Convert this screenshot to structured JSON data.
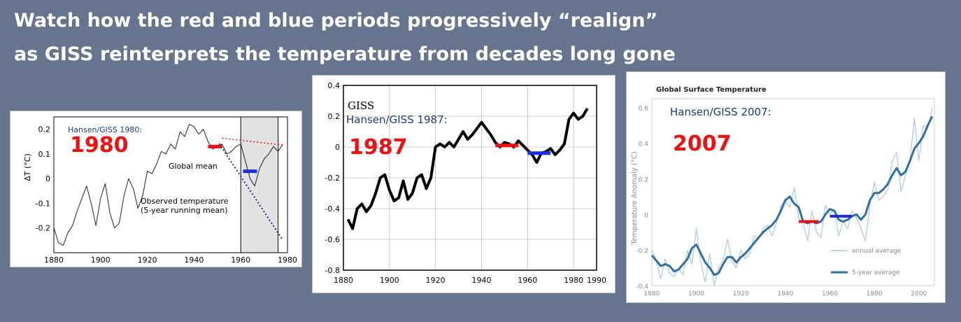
{
  "headline": {
    "line1": "Watch how the red and blue periods progressively “realign”",
    "line2": "as GISS reinterprets the temperature from decades long gone"
  },
  "colors": {
    "background": "#67748f",
    "red_marker": "#ee1111",
    "blue_marker": "#1a2fe0",
    "gistemp_2007_line": "#2e6fa6",
    "gistemp_2007_annual": "#a8c8dc"
  },
  "chart_data": [
    {
      "type": "line",
      "title": "",
      "source_label": "Hansen/GISS 1980:",
      "year_label": "1980",
      "ylabel": "ΔT (°C)",
      "xlabel": "",
      "xlim": [
        1880,
        1980
      ],
      "ylim": [
        -0.3,
        0.25
      ],
      "xticks": [
        1880,
        1900,
        1920,
        1940,
        1960,
        1980
      ],
      "yticks": [
        {
          "v": 0.2,
          "t": "0.2"
        },
        {
          "v": 0.1,
          "t": "0.1"
        },
        {
          "v": 0,
          "t": "0"
        },
        {
          "v": -0.1,
          "t": "-0.1"
        },
        {
          "v": -0.2,
          "t": "-0.2"
        }
      ],
      "annotations": [
        "Global mean",
        "Observed temperature",
        "(5-year running mean)"
      ],
      "x": [
        1880,
        1882,
        1884,
        1886,
        1888,
        1890,
        1892,
        1894,
        1896,
        1898,
        1900,
        1902,
        1904,
        1906,
        1908,
        1910,
        1912,
        1914,
        1916,
        1918,
        1920,
        1922,
        1924,
        1926,
        1928,
        1930,
        1932,
        1934,
        1936,
        1938,
        1940,
        1942,
        1944,
        1946,
        1948,
        1950,
        1952,
        1954,
        1956,
        1958,
        1960,
        1962,
        1964,
        1966,
        1968,
        1970,
        1972,
        1974,
        1976,
        1978
      ],
      "y": [
        -0.2,
        -0.26,
        -0.27,
        -0.22,
        -0.19,
        -0.13,
        -0.08,
        -0.03,
        -0.1,
        -0.19,
        -0.08,
        -0.02,
        -0.14,
        -0.2,
        -0.18,
        -0.07,
        0.0,
        -0.04,
        -0.12,
        -0.07,
        0.03,
        0.02,
        0.06,
        0.11,
        0.1,
        0.14,
        0.12,
        0.19,
        0.17,
        0.22,
        0.21,
        0.18,
        0.2,
        0.15,
        0.12,
        0.13,
        0.14,
        0.1,
        0.11,
        0.13,
        0.14,
        0.07,
        0.0,
        -0.03,
        0.04,
        0.08,
        0.1,
        0.13,
        0.11,
        0.14
      ],
      "red_marker": {
        "x": [
          1946,
          1952
        ],
        "y": 0.13
      },
      "blue_marker": {
        "x": [
          1961,
          1967
        ],
        "y": 0.03
      }
    },
    {
      "type": "line",
      "title": "",
      "source_label": "GISS",
      "source_sublabel": "Hansen/GISS 1987:",
      "year_label": "1987",
      "xlabel": "",
      "ylabel": "",
      "xlim": [
        1880,
        1990
      ],
      "ylim": [
        -0.8,
        0.4
      ],
      "xticks": [
        1880,
        1900,
        1920,
        1940,
        1960,
        1980,
        1990
      ],
      "yticks": [
        {
          "v": 0.4,
          "t": "0.4"
        },
        {
          "v": 0.2,
          "t": "0.2"
        },
        {
          "v": 0,
          "t": "0"
        },
        {
          "v": -0.2,
          "t": "-0.2"
        },
        {
          "v": -0.4,
          "t": "-0.4"
        },
        {
          "v": -0.6,
          "t": "-0.6"
        },
        {
          "v": -0.8,
          "t": "-0.8"
        }
      ],
      "x": [
        1882,
        1884,
        1886,
        1888,
        1890,
        1892,
        1894,
        1896,
        1898,
        1900,
        1902,
        1904,
        1906,
        1908,
        1910,
        1912,
        1914,
        1916,
        1918,
        1920,
        1922,
        1924,
        1926,
        1928,
        1930,
        1932,
        1934,
        1936,
        1938,
        1940,
        1942,
        1944,
        1946,
        1948,
        1950,
        1952,
        1954,
        1956,
        1958,
        1960,
        1962,
        1964,
        1966,
        1968,
        1970,
        1972,
        1974,
        1976,
        1978,
        1980,
        1982,
        1984,
        1986
      ],
      "y": [
        -0.47,
        -0.53,
        -0.4,
        -0.37,
        -0.42,
        -0.38,
        -0.3,
        -0.2,
        -0.18,
        -0.28,
        -0.35,
        -0.33,
        -0.22,
        -0.34,
        -0.3,
        -0.2,
        -0.18,
        -0.27,
        -0.2,
        0.0,
        0.02,
        0.0,
        0.03,
        0.0,
        0.05,
        0.1,
        0.05,
        0.08,
        0.12,
        0.16,
        0.12,
        0.08,
        0.03,
        0.0,
        0.03,
        0.02,
        0.0,
        0.04,
        0.01,
        -0.02,
        -0.05,
        -0.1,
        -0.04,
        -0.03,
        -0.01,
        -0.05,
        -0.02,
        0.02,
        0.18,
        0.22,
        0.18,
        0.2,
        0.25
      ],
      "red_marker": {
        "x": [
          1946,
          1956
        ],
        "y": 0.01
      },
      "blue_marker": {
        "x": [
          1960,
          1970
        ],
        "y": -0.04
      }
    },
    {
      "type": "line",
      "title": "Global Surface Temperature",
      "source_label": "Hansen/GISS 2007:",
      "year_label": "2007",
      "ylabel": "Temperature Anomaly (°C)",
      "xlabel": "",
      "xlim": [
        1880,
        2007
      ],
      "ylim": [
        -0.4,
        0.65
      ],
      "xticks": [
        1880,
        1900,
        1920,
        1940,
        1960,
        1980,
        2000
      ],
      "yticks": [
        {
          "v": 0.6,
          "t": "0.6"
        },
        {
          "v": 0.4,
          "t": "0.4"
        },
        {
          "v": 0.2,
          "t": "0.2"
        },
        {
          "v": 0,
          "t": "0"
        },
        {
          "v": -0.2,
          "t": "-0.2"
        },
        {
          "v": -0.4,
          "t": "-0.4"
        }
      ],
      "series": [
        {
          "name": "annual average",
          "x": [
            1880,
            1882,
            1884,
            1886,
            1888,
            1890,
            1892,
            1894,
            1896,
            1898,
            1900,
            1902,
            1904,
            1906,
            1908,
            1910,
            1912,
            1914,
            1916,
            1918,
            1920,
            1922,
            1924,
            1926,
            1928,
            1930,
            1932,
            1934,
            1936,
            1938,
            1940,
            1942,
            1944,
            1946,
            1948,
            1950,
            1952,
            1954,
            1956,
            1958,
            1960,
            1962,
            1964,
            1966,
            1968,
            1970,
            1972,
            1974,
            1976,
            1978,
            1980,
            1982,
            1984,
            1986,
            1988,
            1990,
            1992,
            1994,
            1996,
            1998,
            2000,
            2002,
            2004,
            2006
          ],
          "y": [
            -0.2,
            -0.26,
            -0.36,
            -0.25,
            -0.33,
            -0.35,
            -0.3,
            -0.34,
            -0.2,
            -0.28,
            -0.08,
            -0.27,
            -0.38,
            -0.22,
            -0.4,
            -0.3,
            -0.26,
            -0.14,
            -0.26,
            -0.3,
            -0.2,
            -0.25,
            -0.22,
            -0.12,
            -0.14,
            -0.08,
            -0.06,
            -0.12,
            -0.05,
            0.05,
            0.08,
            0.04,
            0.15,
            -0.02,
            -0.05,
            -0.15,
            0.02,
            -0.1,
            -0.13,
            0.05,
            0.0,
            0.03,
            -0.12,
            -0.04,
            -0.08,
            0.02,
            -0.02,
            -0.08,
            -0.15,
            0.05,
            0.18,
            0.08,
            0.1,
            0.14,
            0.3,
            0.35,
            0.13,
            0.22,
            0.3,
            0.54,
            0.3,
            0.5,
            0.48,
            0.6
          ]
        },
        {
          "name": "5-year average",
          "x": [
            1880,
            1882,
            1884,
            1886,
            1888,
            1890,
            1892,
            1894,
            1896,
            1898,
            1900,
            1902,
            1904,
            1906,
            1908,
            1910,
            1912,
            1914,
            1916,
            1918,
            1920,
            1922,
            1924,
            1926,
            1928,
            1930,
            1932,
            1934,
            1936,
            1938,
            1940,
            1942,
            1944,
            1946,
            1948,
            1950,
            1952,
            1954,
            1956,
            1958,
            1960,
            1962,
            1964,
            1966,
            1968,
            1970,
            1972,
            1974,
            1976,
            1978,
            1980,
            1982,
            1984,
            1986,
            1988,
            1990,
            1992,
            1994,
            1996,
            1998,
            2000,
            2002,
            2004,
            2006
          ],
          "y": [
            -0.23,
            -0.26,
            -0.29,
            -0.28,
            -0.29,
            -0.32,
            -0.31,
            -0.28,
            -0.25,
            -0.19,
            -0.17,
            -0.22,
            -0.27,
            -0.3,
            -0.34,
            -0.33,
            -0.28,
            -0.24,
            -0.24,
            -0.27,
            -0.24,
            -0.22,
            -0.19,
            -0.16,
            -0.13,
            -0.1,
            -0.08,
            -0.06,
            -0.03,
            0.02,
            0.08,
            0.1,
            0.06,
            0.04,
            -0.04,
            -0.05,
            -0.04,
            -0.05,
            -0.04,
            0.0,
            0.03,
            0.02,
            -0.03,
            -0.04,
            -0.03,
            -0.01,
            0.0,
            -0.03,
            0.0,
            0.08,
            0.12,
            0.12,
            0.14,
            0.17,
            0.22,
            0.26,
            0.22,
            0.24,
            0.3,
            0.37,
            0.4,
            0.44,
            0.5,
            0.55
          ]
        }
      ],
      "red_marker": {
        "x": [
          1946,
          1955
        ],
        "y": -0.04
      },
      "blue_marker": {
        "x": [
          1960,
          1970
        ],
        "y": -0.01
      }
    }
  ]
}
